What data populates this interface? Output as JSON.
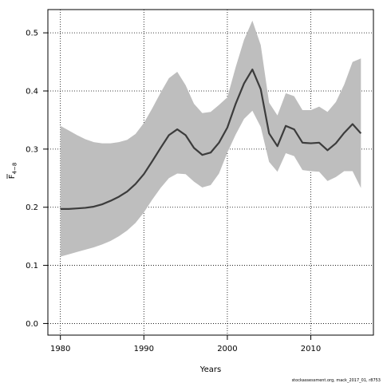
{
  "chart_data": {
    "type": "line",
    "xlabel": "Years",
    "ylabel_main": "F",
    "ylabel_sub": "4−8",
    "x_ticks": [
      "1980",
      "1990",
      "2000",
      "2010"
    ],
    "y_ticks": [
      "0.0",
      "0.1",
      "0.2",
      "0.3",
      "0.4",
      "0.5"
    ],
    "xlim": [
      1978.5,
      2017.5
    ],
    "ylim": [
      -0.02,
      0.54
    ],
    "grid": true,
    "footnote": "stockassessment.org, mack_2017_01, r8753",
    "colors": {
      "band": "#bebebe",
      "line": "#3c3c3c",
      "grid": "#000000"
    },
    "series": [
      {
        "x": [
          1980,
          1981,
          1982,
          1983,
          1984,
          1985,
          1986,
          1987,
          1988,
          1989,
          1990,
          1991,
          1992,
          1993,
          1994,
          1995,
          1996,
          1997,
          1998,
          1999,
          2000,
          2001,
          2002,
          2003,
          2004,
          2005,
          2006,
          2007,
          2008,
          2009,
          2010,
          2011,
          2012,
          2013,
          2014,
          2015,
          2016
        ],
        "estimate": [
          0.197,
          0.197,
          0.198,
          0.199,
          0.201,
          0.205,
          0.211,
          0.218,
          0.227,
          0.24,
          0.257,
          0.279,
          0.302,
          0.324,
          0.334,
          0.324,
          0.302,
          0.29,
          0.294,
          0.311,
          0.337,
          0.378,
          0.413,
          0.437,
          0.403,
          0.327,
          0.305,
          0.34,
          0.334,
          0.311,
          0.31,
          0.311,
          0.298,
          0.31,
          0.328,
          0.343,
          0.327
        ],
        "lower": [
          0.115,
          0.119,
          0.123,
          0.127,
          0.131,
          0.136,
          0.142,
          0.15,
          0.16,
          0.173,
          0.191,
          0.213,
          0.233,
          0.25,
          0.258,
          0.257,
          0.244,
          0.234,
          0.238,
          0.258,
          0.294,
          0.325,
          0.352,
          0.366,
          0.338,
          0.278,
          0.261,
          0.293,
          0.288,
          0.264,
          0.262,
          0.261,
          0.245,
          0.252,
          0.262,
          0.262,
          0.233
        ],
        "upper": [
          0.34,
          0.332,
          0.324,
          0.317,
          0.312,
          0.31,
          0.31,
          0.312,
          0.316,
          0.326,
          0.345,
          0.37,
          0.397,
          0.422,
          0.433,
          0.41,
          0.378,
          0.362,
          0.364,
          0.376,
          0.389,
          0.441,
          0.488,
          0.521,
          0.479,
          0.38,
          0.358,
          0.396,
          0.391,
          0.367,
          0.367,
          0.373,
          0.364,
          0.381,
          0.411,
          0.45,
          0.456
        ]
      }
    ]
  }
}
